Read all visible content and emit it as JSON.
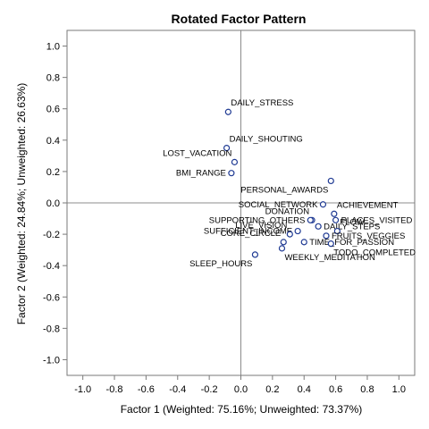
{
  "chart_data": {
    "type": "scatter",
    "title": "Rotated Factor Pattern",
    "xlabel": "Factor 1 (Weighted: 75.16%; Unweighted: 73.37%)",
    "ylabel": "Factor 2 (Weighted: 24.84%; Unweighted: 26.63%)",
    "xlim": [
      -1.1,
      1.1
    ],
    "ylim": [
      -1.1,
      1.1
    ],
    "xticks": [
      "-1.0",
      "-0.8",
      "-0.6",
      "-0.4",
      "-0.2",
      "0.0",
      "0.2",
      "0.4",
      "0.6",
      "0.8",
      "1.0"
    ],
    "yticks": [
      "-1.0",
      "-0.8",
      "-0.6",
      "-0.4",
      "-0.2",
      "0.0",
      "0.2",
      "0.4",
      "0.6",
      "0.8",
      "1.0"
    ],
    "reference_lines": {
      "x": 0,
      "y": 0
    },
    "grid": false,
    "marker_color": "#1f3a93",
    "points": [
      {
        "label": "DAILY_STRESS",
        "x": -0.08,
        "y": 0.58,
        "anchor": "above-right"
      },
      {
        "label": "DAILY_SHOUTING",
        "x": -0.09,
        "y": 0.35,
        "anchor": "above-right"
      },
      {
        "label": "LOST_VACATION",
        "x": -0.04,
        "y": 0.26,
        "anchor": "above-left"
      },
      {
        "label": "BMI_RANGE",
        "x": -0.06,
        "y": 0.19,
        "anchor": "left"
      },
      {
        "label": "PERSONAL_AWARDS",
        "x": 0.57,
        "y": 0.14,
        "anchor": "below-left"
      },
      {
        "label": "SOCIAL_NETWORK",
        "x": 0.52,
        "y": -0.01,
        "anchor": "left"
      },
      {
        "label": "ACHIEVEMENT",
        "x": 0.59,
        "y": -0.07,
        "anchor": "above-right"
      },
      {
        "label": "DONATION",
        "x": 0.45,
        "y": -0.11,
        "anchor": "above-left"
      },
      {
        "label": "SUPPORTING_OTHERS",
        "x": 0.44,
        "y": -0.11,
        "anchor": "left"
      },
      {
        "label": "PLACES_VISITED",
        "x": 0.6,
        "y": -0.11,
        "anchor": "right"
      },
      {
        "label": "SUFFICIENT_INCOME",
        "x": 0.36,
        "y": -0.18,
        "anchor": "left"
      },
      {
        "label": "DAILY_STEPS",
        "x": 0.49,
        "y": -0.15,
        "anchor": "right"
      },
      {
        "label": "FLOW",
        "x": 0.61,
        "y": -0.18,
        "anchor": "above-right"
      },
      {
        "label": "LIVE_VISION",
        "x": 0.31,
        "y": -0.2,
        "anchor": "above-left"
      },
      {
        "label": "FRUITS_VEGGIES",
        "x": 0.54,
        "y": -0.21,
        "anchor": "right"
      },
      {
        "label": "CORE_CIRCLE",
        "x": 0.27,
        "y": -0.25,
        "anchor": "above-left"
      },
      {
        "label": "TIME_FOR_PASSION",
        "x": 0.4,
        "y": -0.25,
        "anchor": "right"
      },
      {
        "label": "TODO_COMPLETED",
        "x": 0.57,
        "y": -0.26,
        "anchor": "below-right"
      },
      {
        "label": "WEEKLY_MEDITATION",
        "x": 0.26,
        "y": -0.29,
        "anchor": "below-right"
      },
      {
        "label": "SLEEP_HOURS",
        "x": 0.09,
        "y": -0.33,
        "anchor": "below-left"
      }
    ]
  }
}
